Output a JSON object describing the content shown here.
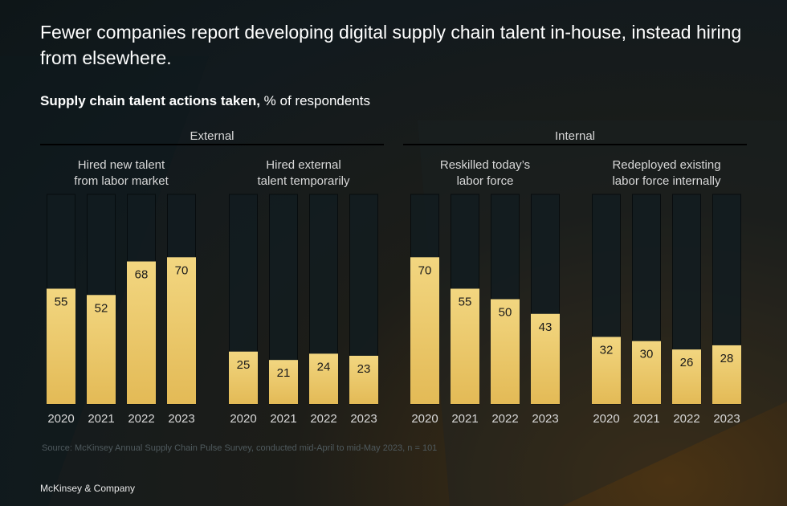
{
  "title": "Fewer companies report developing digital supply chain talent in-house, instead hiring from elsewhere.",
  "subtitle_bold": "Supply chain talent actions taken,",
  "subtitle_rest": " % of respondents",
  "source": "Source: McKinsey Annual Supply Chain Pulse Survey, conducted mid-April to mid-May 2023, n = 101",
  "brand": "McKinsey & Company",
  "colors": {
    "bar_top": "#f2d680",
    "bar_bottom": "#e3ba56",
    "empty_fill": "#121c20",
    "empty_stroke": "#050a0c",
    "text_light": "#d8d8d8",
    "label_dark": "#1a1a1a"
  },
  "chart_data": {
    "type": "bar",
    "ylim": [
      0,
      100
    ],
    "groups": [
      {
        "name": "External",
        "series": [
          {
            "name": "Hired new talent from labor market",
            "label_lines": [
              "Hired new talent",
              "from labor market"
            ],
            "categories": [
              "2020",
              "2021",
              "2022",
              "2023"
            ],
            "values": [
              55,
              52,
              68,
              70
            ]
          },
          {
            "name": "Hired external talent temporarily",
            "label_lines": [
              "Hired external",
              "talent temporarily"
            ],
            "categories": [
              "2020",
              "2021",
              "2022",
              "2023"
            ],
            "values": [
              25,
              21,
              24,
              23
            ]
          }
        ]
      },
      {
        "name": "Internal",
        "series": [
          {
            "name": "Reskilled today's labor force",
            "label_lines": [
              "Reskilled today’s",
              "labor force"
            ],
            "categories": [
              "2020",
              "2021",
              "2022",
              "2023"
            ],
            "values": [
              70,
              55,
              50,
              43
            ]
          },
          {
            "name": "Redeployed existing labor force internally",
            "label_lines": [
              "Redeployed existing",
              "labor force internally"
            ],
            "categories": [
              "2020",
              "2021",
              "2022",
              "2023"
            ],
            "values": [
              32,
              30,
              26,
              28
            ]
          }
        ]
      }
    ]
  }
}
